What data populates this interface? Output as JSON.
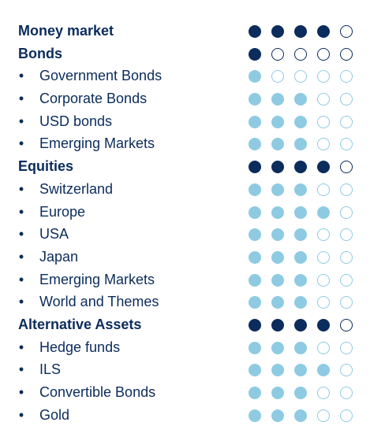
{
  "colors": {
    "dark": "#0b2c5c",
    "light": "#8ecbe2",
    "light_outline": "#8ecbe2",
    "dark_outline": "#0b2c5c"
  },
  "rows": [
    {
      "label": "Money market",
      "type": "header",
      "filled": 4
    },
    {
      "label": "Bonds",
      "type": "header",
      "filled": 1
    },
    {
      "label": "Government Bonds",
      "type": "sub",
      "filled": 1
    },
    {
      "label": "Corporate Bonds",
      "type": "sub",
      "filled": 3
    },
    {
      "label": "USD bonds",
      "type": "sub",
      "filled": 3
    },
    {
      "label": "Emerging Markets",
      "type": "sub",
      "filled": 3
    },
    {
      "label": "Equities",
      "type": "header",
      "filled": 4
    },
    {
      "label": "Switzerland",
      "type": "sub",
      "filled": 3
    },
    {
      "label": "Europe",
      "type": "sub",
      "filled": 4
    },
    {
      "label": "USA",
      "type": "sub",
      "filled": 3
    },
    {
      "label": "Japan",
      "type": "sub",
      "filled": 3
    },
    {
      "label": "Emerging Markets",
      "type": "sub",
      "filled": 3
    },
    {
      "label": "World and Themes",
      "type": "sub",
      "filled": 3
    },
    {
      "label": "Alternative Assets",
      "type": "header",
      "filled": 4
    },
    {
      "label": "Hedge funds",
      "type": "sub",
      "filled": 3
    },
    {
      "label": "ILS",
      "type": "sub",
      "filled": 4
    },
    {
      "label": "Convertible Bonds",
      "type": "sub",
      "filled": 3
    },
    {
      "label": "Gold",
      "type": "sub",
      "filled": 3
    }
  ],
  "bullet_char": "•",
  "dots_total": 5
}
